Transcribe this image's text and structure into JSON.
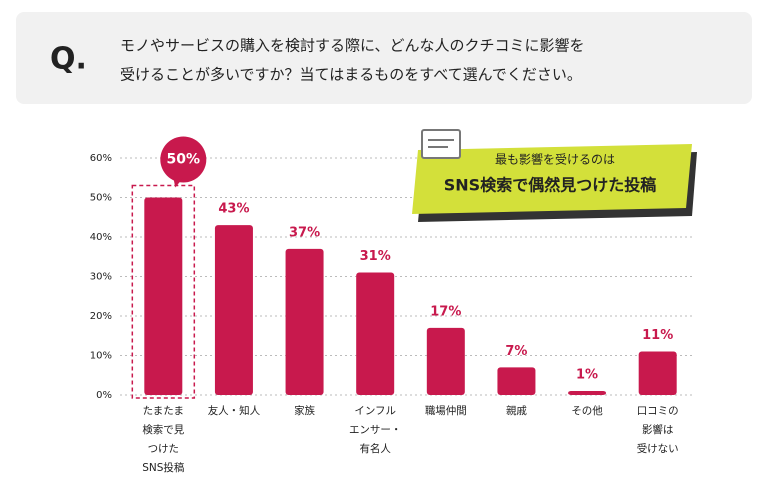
{
  "header": {
    "label": "Q.",
    "lines": [
      "モノやサービスの購入を検討する際に、どんな人のクチコミに影響を",
      "受けることが多いですか？当てはまるものをすべて選んでください。"
    ]
  },
  "chart_data": {
    "type": "bar",
    "categories": [
      "たまたま\n検索で見\nつけた\nSNS投稿",
      "友人・知人",
      "家族",
      "インフル\nエンサー・\n有名人",
      "職場仲間",
      "親戚",
      "その他",
      "口コミの\n影響は\n受けない"
    ],
    "values": [
      50,
      43,
      37,
      31,
      17,
      7,
      1,
      11
    ],
    "value_labels": [
      "50%",
      "43%",
      "37%",
      "31%",
      "17%",
      "7%",
      "1%",
      "11%"
    ],
    "color": "#c8194d",
    "ylim": [
      0,
      60
    ],
    "yticks": [
      {
        "value": 0,
        "label": "0%"
      },
      {
        "value": 10,
        "label": "10%"
      },
      {
        "value": 20,
        "label": "20%"
      },
      {
        "value": 30,
        "label": "30%"
      },
      {
        "value": 40,
        "label": "40%"
      },
      {
        "value": 50,
        "label": "50%"
      },
      {
        "value": 60,
        "label": "60%"
      }
    ],
    "grid": true,
    "annotation": {
      "lead": "最も影響を受けるのは",
      "text": "SNS検索で偶然見つけた投稿"
    }
  }
}
